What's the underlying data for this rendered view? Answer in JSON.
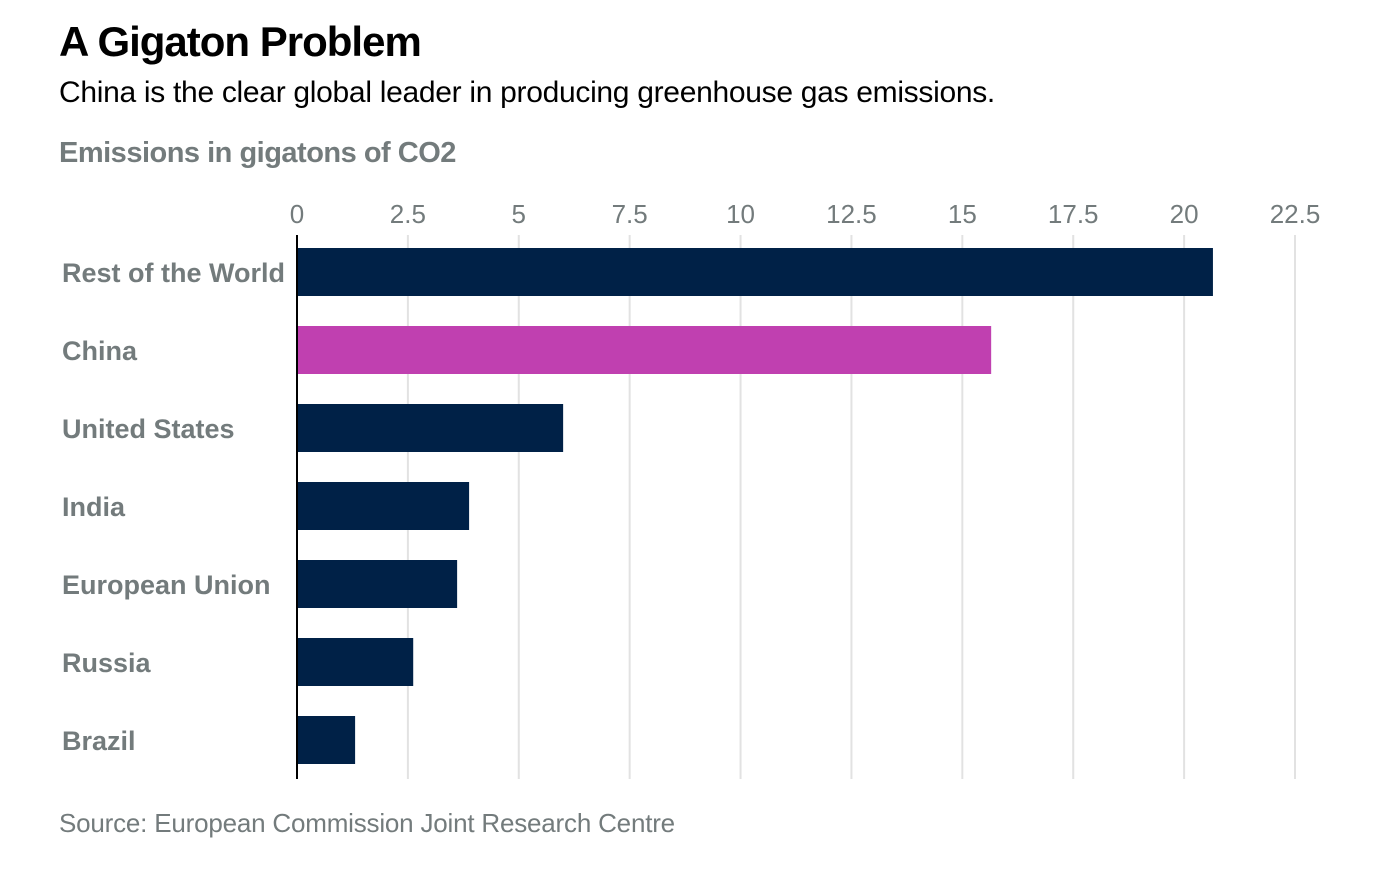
{
  "header": {
    "title": "A Gigaton Problem",
    "subtitle": "China is the clear global leader in producing greenhouse gas emissions.",
    "unit_label": "Emissions in gigatons of CO2"
  },
  "footer": {
    "source": "Source: European Commission Joint Research Centre"
  },
  "colors": {
    "default_bar": "#002147",
    "highlight_bar": "#c040b0",
    "gridline": "#e2e2e2",
    "axis": "#000000",
    "label": "#737b7c"
  },
  "chart_data": {
    "type": "bar",
    "orientation": "horizontal",
    "title": "A Gigaton Problem",
    "subtitle": "China is the clear global leader in producing greenhouse gas emissions.",
    "xlabel": "Emissions in gigatons of CO2",
    "ylabel": "",
    "categories": [
      "Rest of the World",
      "China",
      "United States",
      "India",
      "European Union",
      "Russia",
      "Brazil"
    ],
    "values": [
      20.65,
      15.65,
      6.0,
      3.88,
      3.61,
      2.62,
      1.31
    ],
    "highlight": [
      "China"
    ],
    "xlim": [
      0,
      22.5
    ],
    "ticks": [
      0,
      2.5,
      5,
      7.5,
      10,
      12.5,
      15,
      17.5,
      20,
      22.5
    ],
    "tick_labels": [
      "0",
      "2.5",
      "5",
      "7.5",
      "10",
      "12.5",
      "15",
      "17.5",
      "20",
      "22.5"
    ],
    "grid": true,
    "tick_position": "top",
    "legend": "none",
    "source": "Source: European Commission Joint Research Centre"
  }
}
